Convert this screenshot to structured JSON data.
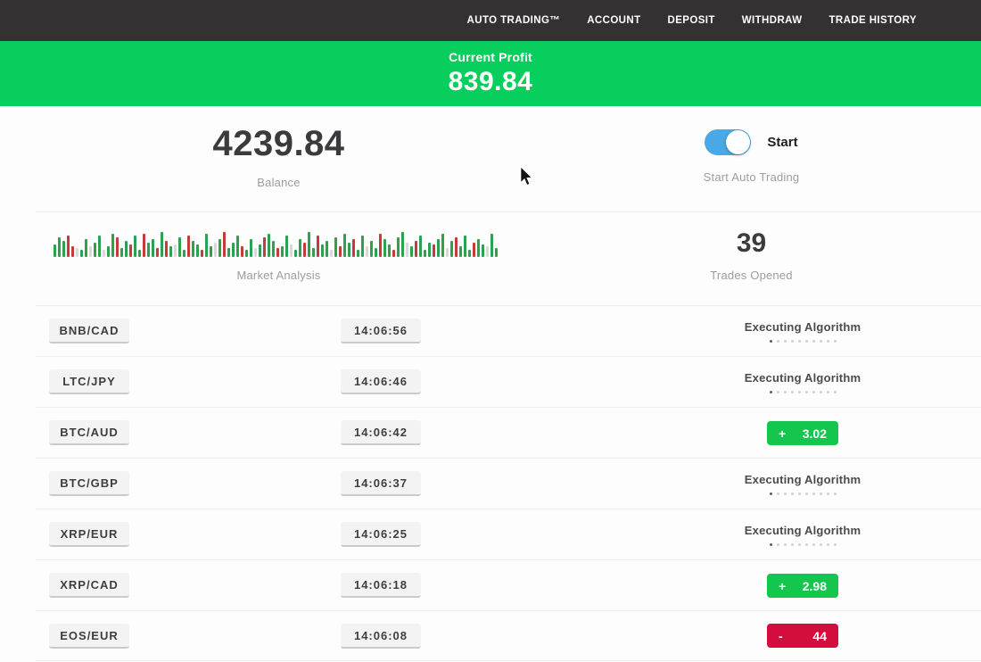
{
  "nav": {
    "items": [
      {
        "label": "AUTO TRADING™"
      },
      {
        "label": "ACCOUNT"
      },
      {
        "label": "DEPOSIT"
      },
      {
        "label": "WITHDRAW"
      },
      {
        "label": "TRADE HISTORY"
      }
    ]
  },
  "profit_banner": {
    "label": "Current Profit",
    "value": "839.84"
  },
  "stats": {
    "balance": {
      "value": "4239.84",
      "label": "Balance"
    },
    "auto_trading": {
      "toggle_on": true,
      "toggle_label": "Start",
      "label": "Start Auto Trading"
    },
    "market_analysis": {
      "label": "Market Analysis"
    },
    "trades_opened": {
      "value": "39",
      "label": "Trades Opened"
    }
  },
  "market_chart": {
    "type": "bar",
    "title": "Market Analysis",
    "note": "decorative candlestick strip; entries are color(g=green,r=red,l=lightgray)+height px",
    "bars": [
      "g14",
      "g22",
      "g18",
      "r24",
      "r12",
      "l10",
      "g8",
      "g20",
      "l12",
      "g16",
      "g24",
      "l8",
      "g12",
      "g26",
      "r22",
      "g10",
      "g18",
      "r14",
      "g24",
      "g8",
      "r26",
      "g16",
      "g20",
      "r10",
      "g28",
      "r18",
      "g12",
      "l14",
      "g22",
      "g8",
      "r24",
      "g18",
      "g14",
      "r8",
      "g26",
      "g12",
      "l16",
      "g20",
      "r28",
      "g10",
      "g16",
      "g24",
      "r12",
      "g8",
      "g20",
      "l10",
      "g14",
      "r22",
      "g26",
      "g18",
      "r10",
      "g12",
      "g24",
      "l14",
      "g8",
      "g20",
      "r16",
      "g28",
      "g10",
      "r24",
      "g14",
      "g18",
      "l8",
      "g22",
      "r12",
      "g26",
      "g16",
      "r20",
      "g8",
      "g24",
      "l12",
      "g18",
      "g10",
      "r26",
      "g20",
      "g14",
      "r8",
      "g22",
      "g28",
      "l16",
      "g12",
      "r18",
      "g24",
      "g8",
      "g16",
      "r14",
      "g20",
      "g26",
      "l10",
      "g18",
      "r22",
      "g12",
      "g24",
      "g8",
      "r16",
      "g20",
      "g14",
      "l12",
      "g26",
      "g10"
    ]
  },
  "trades": {
    "rows": [
      {
        "pair": "BNB/CAD",
        "time": "14:06:56",
        "status": {
          "type": "executing",
          "label": "Executing Algorithm"
        }
      },
      {
        "pair": "LTC/JPY",
        "time": "14:06:46",
        "status": {
          "type": "executing",
          "label": "Executing Algorithm"
        }
      },
      {
        "pair": "BTC/AUD",
        "time": "14:06:42",
        "status": {
          "type": "profit",
          "sign": "+",
          "value": "3.02"
        }
      },
      {
        "pair": "BTC/GBP",
        "time": "14:06:37",
        "status": {
          "type": "executing",
          "label": "Executing Algorithm"
        }
      },
      {
        "pair": "XRP/EUR",
        "time": "14:06:25",
        "status": {
          "type": "executing",
          "label": "Executing Algorithm"
        }
      },
      {
        "pair": "XRP/CAD",
        "time": "14:06:18",
        "status": {
          "type": "profit",
          "sign": "+",
          "value": "2.98"
        }
      },
      {
        "pair": "EOS/EUR",
        "time": "14:06:08",
        "status": {
          "type": "loss",
          "sign": "-",
          "value": "44"
        }
      }
    ]
  },
  "colors": {
    "navbar_bg": "#343132",
    "banner_green": "#07ce5c",
    "badge_green": "#14c64d",
    "badge_red": "#d30e3e",
    "toggle_blue": "#48a9e6",
    "bar_green": "#2da14f",
    "bar_red": "#c43b3b",
    "bar_gray": "#d9d9d9"
  }
}
